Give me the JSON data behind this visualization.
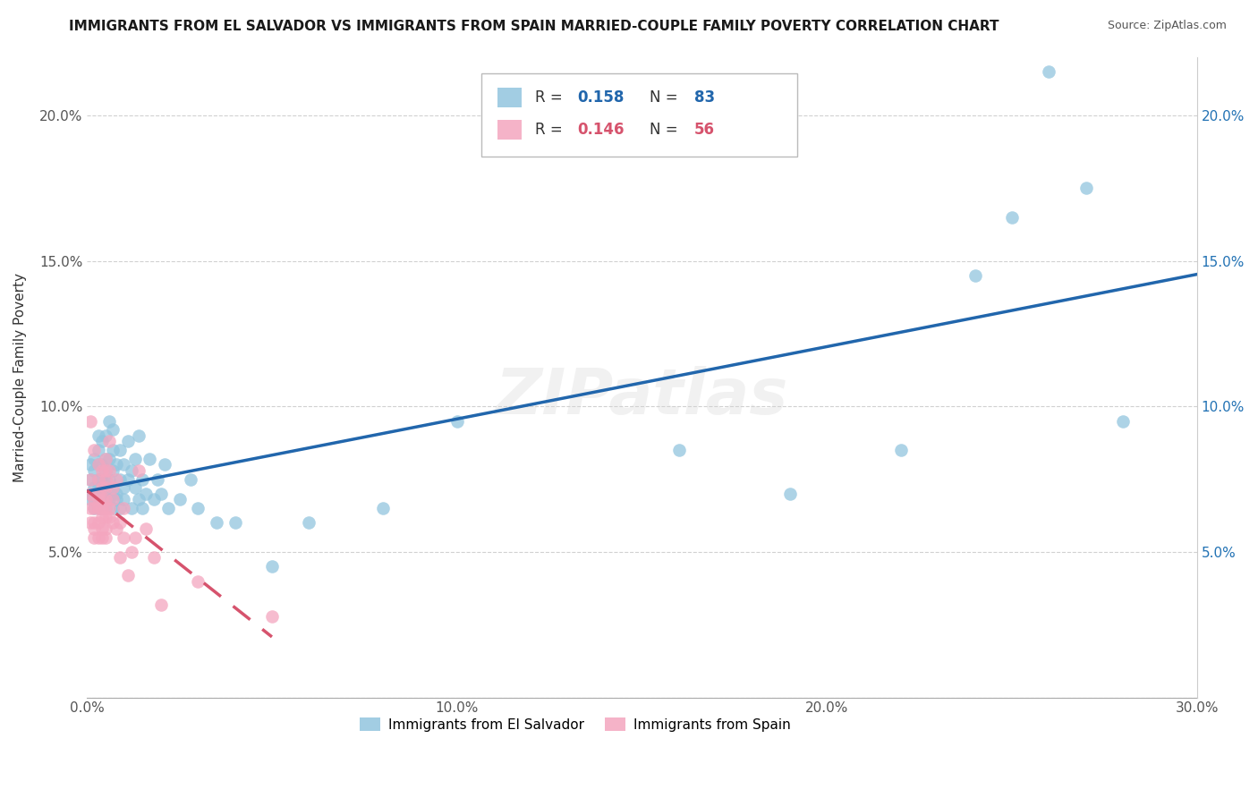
{
  "title": "IMMIGRANTS FROM EL SALVADOR VS IMMIGRANTS FROM SPAIN MARRIED-COUPLE FAMILY POVERTY CORRELATION CHART",
  "source": "Source: ZipAtlas.com",
  "ylabel": "Married-Couple Family Poverty",
  "xlim": [
    0.0,
    0.3
  ],
  "ylim": [
    0.0,
    0.22
  ],
  "xticks": [
    0.0,
    0.05,
    0.1,
    0.15,
    0.2,
    0.25,
    0.3
  ],
  "xtick_labels": [
    "0.0%",
    "",
    "10.0%",
    "",
    "20.0%",
    "",
    "30.0%"
  ],
  "yticks": [
    0.0,
    0.05,
    0.1,
    0.15,
    0.2
  ],
  "ytick_labels_left": [
    "",
    "5.0%",
    "10.0%",
    "15.0%",
    "20.0%"
  ],
  "ytick_labels_right": [
    "",
    "5.0%",
    "10.0%",
    "15.0%",
    "20.0%"
  ],
  "grid_color": "#cccccc",
  "background_color": "#ffffff",
  "el_salvador_color": "#92c5de",
  "spain_color": "#f4a6bf",
  "el_salvador_line_color": "#2166ac",
  "spain_line_color": "#d6536d",
  "r_el_salvador": "0.158",
  "n_el_salvador": "83",
  "r_spain": "0.146",
  "n_spain": "56",
  "legend_label_1": "Immigrants from El Salvador",
  "legend_label_2": "Immigrants from Spain",
  "el_salvador_x": [
    0.001,
    0.001,
    0.001,
    0.001,
    0.002,
    0.002,
    0.002,
    0.002,
    0.002,
    0.003,
    0.003,
    0.003,
    0.003,
    0.003,
    0.003,
    0.003,
    0.003,
    0.004,
    0.004,
    0.004,
    0.004,
    0.004,
    0.004,
    0.005,
    0.005,
    0.005,
    0.005,
    0.005,
    0.005,
    0.005,
    0.005,
    0.006,
    0.006,
    0.006,
    0.006,
    0.007,
    0.007,
    0.007,
    0.007,
    0.007,
    0.008,
    0.008,
    0.008,
    0.009,
    0.009,
    0.009,
    0.01,
    0.01,
    0.01,
    0.011,
    0.011,
    0.012,
    0.012,
    0.013,
    0.013,
    0.014,
    0.014,
    0.015,
    0.015,
    0.016,
    0.017,
    0.018,
    0.019,
    0.02,
    0.021,
    0.022,
    0.025,
    0.028,
    0.03,
    0.035,
    0.04,
    0.05,
    0.06,
    0.08,
    0.1,
    0.16,
    0.19,
    0.22,
    0.24,
    0.25,
    0.26,
    0.27,
    0.28
  ],
  "el_salvador_y": [
    0.075,
    0.08,
    0.068,
    0.07,
    0.072,
    0.065,
    0.078,
    0.068,
    0.082,
    0.07,
    0.065,
    0.075,
    0.08,
    0.085,
    0.072,
    0.068,
    0.09,
    0.07,
    0.075,
    0.065,
    0.08,
    0.072,
    0.088,
    0.068,
    0.075,
    0.082,
    0.07,
    0.065,
    0.078,
    0.072,
    0.09,
    0.075,
    0.068,
    0.082,
    0.095,
    0.07,
    0.078,
    0.085,
    0.065,
    0.092,
    0.07,
    0.08,
    0.068,
    0.075,
    0.065,
    0.085,
    0.072,
    0.068,
    0.08,
    0.075,
    0.088,
    0.065,
    0.078,
    0.072,
    0.082,
    0.068,
    0.09,
    0.065,
    0.075,
    0.07,
    0.082,
    0.068,
    0.075,
    0.07,
    0.08,
    0.065,
    0.068,
    0.075,
    0.065,
    0.06,
    0.06,
    0.045,
    0.06,
    0.065,
    0.095,
    0.085,
    0.07,
    0.085,
    0.145,
    0.165,
    0.215,
    0.175,
    0.095
  ],
  "spain_x": [
    0.001,
    0.001,
    0.001,
    0.001,
    0.001,
    0.002,
    0.002,
    0.002,
    0.002,
    0.002,
    0.002,
    0.003,
    0.003,
    0.003,
    0.003,
    0.003,
    0.003,
    0.003,
    0.004,
    0.004,
    0.004,
    0.004,
    0.004,
    0.004,
    0.004,
    0.005,
    0.005,
    0.005,
    0.005,
    0.005,
    0.005,
    0.005,
    0.005,
    0.005,
    0.006,
    0.006,
    0.006,
    0.006,
    0.007,
    0.007,
    0.007,
    0.008,
    0.008,
    0.009,
    0.009,
    0.01,
    0.01,
    0.011,
    0.012,
    0.013,
    0.014,
    0.016,
    0.018,
    0.02,
    0.03,
    0.05
  ],
  "spain_y": [
    0.07,
    0.095,
    0.06,
    0.065,
    0.075,
    0.06,
    0.065,
    0.055,
    0.068,
    0.058,
    0.085,
    0.06,
    0.065,
    0.07,
    0.055,
    0.075,
    0.068,
    0.08,
    0.058,
    0.062,
    0.068,
    0.072,
    0.078,
    0.055,
    0.065,
    0.058,
    0.062,
    0.068,
    0.072,
    0.075,
    0.078,
    0.082,
    0.065,
    0.055,
    0.062,
    0.065,
    0.078,
    0.088,
    0.06,
    0.068,
    0.072,
    0.058,
    0.075,
    0.06,
    0.048,
    0.055,
    0.065,
    0.042,
    0.05,
    0.055,
    0.078,
    0.058,
    0.048,
    0.032,
    0.04,
    0.028
  ],
  "watermark": "ZIPatlas",
  "watermark_fontsize": 52
}
